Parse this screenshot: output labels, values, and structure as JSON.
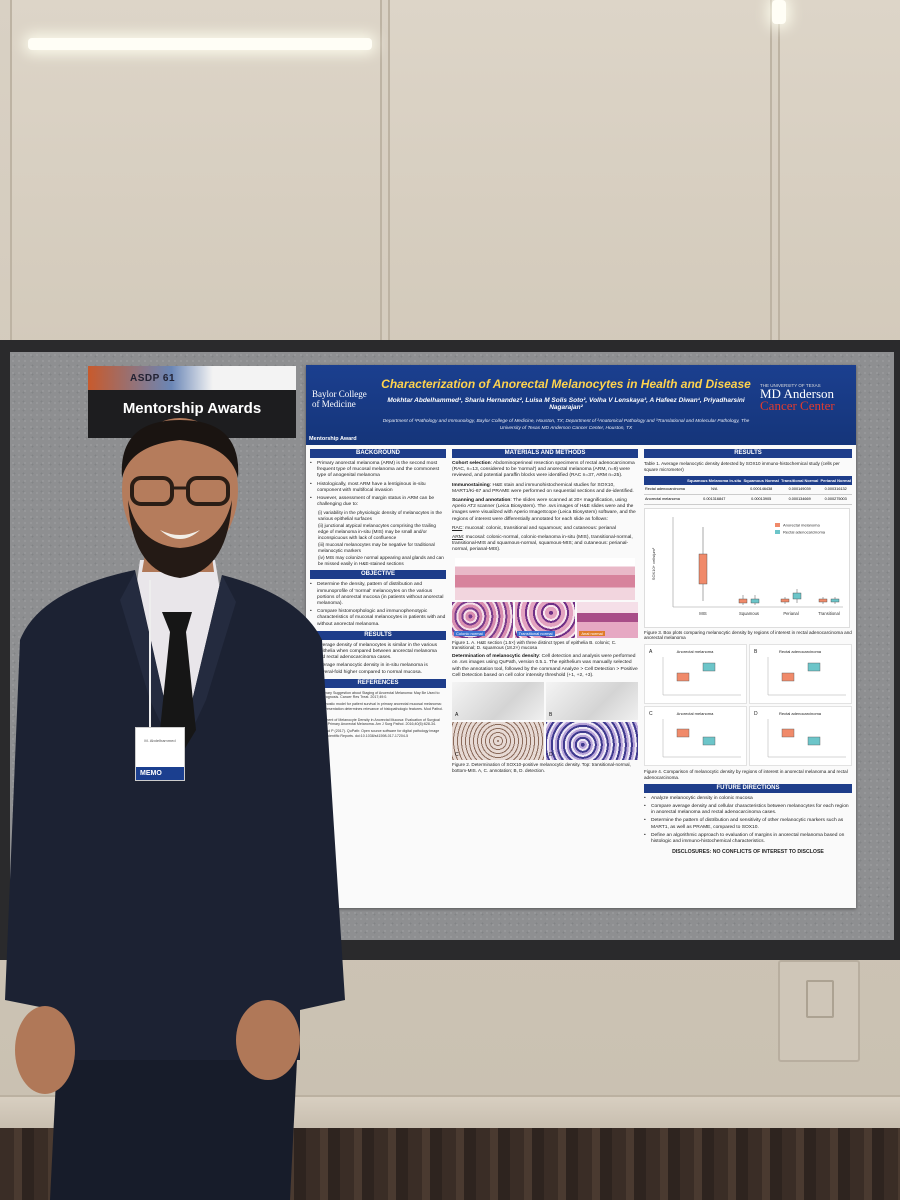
{
  "sign": {
    "brand": "ASDP 61",
    "title": "Mentorship Awards"
  },
  "poster": {
    "title": "Characterization of Anorectal Melanocytes in Health and Disease",
    "authors": "Mokhtar Abdelhammed¹, Sharia Hernandez², Luisa M Solis Soto², Volha V Lenskaya³, A Hafeez Diwan¹, Priyadharsini Nagarajan²",
    "affiliations": "Department of ¹Pathology and Immunology, Baylor College of Medicine, Houston, TX; Department of ²Anatomical Pathology and ³Translational and Molecular Pathology, The University of Texas MD Anderson Cancer Center, Houston, TX",
    "award_tag": "Mentorship Award",
    "logo_left": "Baylor College of Medicine",
    "logo_right_small": "THE UNIVERSITY OF TEXAS",
    "logo_right_line1": "MD Anderson",
    "logo_right_line2": "Cancer Center",
    "background": {
      "heading": "BACKGROUND",
      "bullet1": "Primary anorectal melanoma (ARM) is the second most frequent type of mucosal melanoma and the commonest type of anogenital melanoma",
      "bullet2": "Histologically, most ARM have a lentiginous in-situ component with multifocal invasion",
      "bullet3": "However, assessment of margin status in ARM can be challenging due to:",
      "sub1": "(i) variability in the physiologic density of melanocytes in the various epithelial surfaces",
      "sub2": "(ii) junctional atypical melanocytes comprising the trailing edge of melanoma in-situ (MIS) may be small and/or inconspicuous with lack of confluence",
      "sub3": "(iii) mucosal melanocytes may be negative for traditional melanocytic markers",
      "sub4": "(iv) MIS may colonize normal appearing anal glands and can be missed easily in H&E-stained sections"
    },
    "objective": {
      "heading": "OBJECTIVE",
      "text1": "Determine the density, pattern of distribution and immunoprofile of 'normal' melanocytes on the various portions of anorectal mucosa (in patients without anorectal melanoma).",
      "text2": "Compare histomorphologic and immunophenotypic characteristics of mucosal melanocytes in patients with and without anorectal melanoma."
    },
    "results_left": {
      "heading": "RESULTS",
      "text1": "Average density of melanocytes is similar in the various epithelia when compared between anorectal melanoma and rectal adenocarcinoma cases.",
      "text2": "Average melanocytic density in in-situ melanoma is several-fold higher compared to normal mucosa."
    },
    "references": {
      "heading": "REFERENCES",
      "ref1": "1. Preliminary Suggestion about Staging of Anorectal Melanoma: May Be Used to Predict Prognosis. Cancer Res Treat. 2017;49:0.",
      "ref2": "2. ... Prognostic model for patient survival in primary anorectal mucosal melanoma: stage at presentation determines relevance of histopathologic features. Mod Pathol. 2020.",
      "ref3": "3. Assessment of Melanocyte Density in Anorectal Mucosa: Evaluation of Surgical Margins in Primary Anorectal Melanoma. Am J Surg Pathol. 2016;40(5):628-34.",
      "ref4": "4. Bankhead P (2017). QuPath: Open source software for digital pathology image analysis. Scientific Reports. doi:10.1038/s41598-017-17204-5"
    },
    "methods": {
      "heading": "MATERIALS AND METHODS",
      "cohort_label": "Cohort selection",
      "cohort_text": ": Abdominoperineal resection specimens of rectal adenocarcinoma (RAC, n=13, considered to be 'normal') and anorectal melanoma (ARM, n=9) were reviewed, and potential paraffin blocks were identified (RAC n=37, ARM n=25).",
      "immuno_label": "Immunostaining",
      "immuno_text": ": H&E stain and immunohistochemical studies for SOX10, MART1/Ki-67 and PRAME were performed on sequential sections and de-identified.",
      "scan_label": "Scanning and annotation",
      "scan_text": ": The slides were scanned at 20× magnification, using Aperio AT2 scanner (Leica Biosystem). The .svs images of H&E slides were and the images were visualized with Aperio ImageScope (Leica Biosystem) software, and the regions of interest were differentially annotated for each slide as follows:",
      "rac_label": "RAC",
      "rac_text": ": mucosal: colonic, transitional and squamous; and cutaneous: perianal",
      "arm_label": "ARM",
      "arm_text": ": mucosal: colonic-normal, colonic-melanoma in-situ (MIS), transitional-normal, transitional-MIS and squamous-normal, squamous-MIS; and cutaneous: perianal-normal, perianal-MIS).",
      "fig1_label_a": "Colonic normal",
      "fig1_label_b": "Transitional normal",
      "fig1_label_c": "Anal normal",
      "fig1_caption": "Figure 1. A. H&E section (1.5×) with three distinct types of epithelia B. colonic; C. transitional; D. squamous (18.2×) mucosa",
      "det_label": "Determination of melanocytic density",
      "det_text": ": Cell detection and analysis were performed on .svs images using QuPath, version 0.5.1. The epithelium was manually selected with the annotation tool, followed by the command Analyze > Cell Detection > Positive Cell Detection based on cell color intensity threshold (+1, +2, +3).",
      "fig2_caption": "Figure 2. Determination of SOX10-positive melanocytic density. Top: transitional-normal, bottom-MIS. A, C. annotation; B, D. detection.",
      "letter_a": "A",
      "letter_b": "B",
      "letter_c": "C",
      "letter_d": "D"
    },
    "results_right": {
      "heading": "RESULTS",
      "table_caption": "Table 1. Average melanocytic density detected by SOX10 immuno-histochemical study (cells per square micrometer)",
      "table_headers": [
        "",
        "Squamous Melanoma in-situ",
        "Squamous Normal",
        "Transitional Normal",
        "Perianal Normal"
      ],
      "table_rows": [
        [
          "Rectal adenocarcinoma",
          "N/A",
          "0.000146438",
          "0.000149039",
          "0.000316132"
        ],
        [
          "Anorectal melanoma",
          "0.001316847",
          "0.00013905",
          "0.000134669",
          "0.000275003"
        ]
      ],
      "fig3_caption": "Figure 3. Box plots comparing melanocytic density by regions of interest in rectal adenocarcinoma and anorectal melanoma",
      "fig4_caption": "Figure 4. Comparison of melanocytic density by regions of interest in anorectal melanoma and rectal adenocarcinoma."
    },
    "fig3_chart": {
      "y_label": "SOX10+ cells/µm²",
      "legend": [
        "Anorectal melanoma",
        "Rectal adenocarcinoma"
      ],
      "categories": [
        "MIS",
        "Squamous",
        "Perianal",
        "Transitional"
      ],
      "colors": [
        "#f08a6a",
        "#6cc5c9"
      ]
    },
    "fig4_panels": [
      {
        "letter": "A",
        "title": "Anorectal melanoma"
      },
      {
        "letter": "B",
        "title": "Rectal adenocarcinoma"
      },
      {
        "letter": "C",
        "title": "Anorectal melanoma"
      },
      {
        "letter": "D",
        "title": "Rectal adenocarcinoma"
      }
    ],
    "future": {
      "heading": "FUTURE DIRECTIONS",
      "item1": "Analyze melanocytic density in colonic mucosa",
      "item2": "Compare average density and cellular characteristics between melanocytes for each region in anorectal melanoma and rectal adenocarcinoma cases.",
      "item3": "Determine the pattern of distribution and sensitivity of other melanocytic markers such as MART1, as well as PRAME, compared to SOX10.",
      "item4": "Define an algorithmic approach to evaluation of margins in anorectal melanoma based on histologic and immuno-histochemical characteristics."
    },
    "disclosures": "DISCLOSURES: NO CONFLICTS OF INTEREST TO DISCLOSE"
  },
  "badge": {
    "text": "MEMO",
    "name_small": "M. Abdelhammed"
  },
  "colors": {
    "poster_blue": "#1e3d8a",
    "title_yellow": "#ffd34d",
    "suit": "#1c2233"
  }
}
